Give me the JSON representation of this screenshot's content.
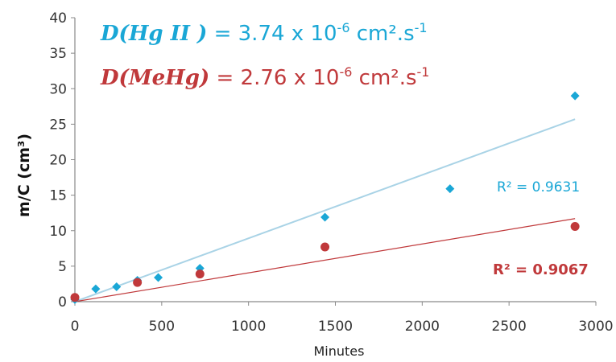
{
  "chart_data": {
    "type": "scatter",
    "xlabel": "Minutes",
    "ylabel": "m/C (cm³)",
    "xlim": [
      0,
      3000
    ],
    "ylim": [
      0,
      40
    ],
    "xticks": [
      "0",
      "500",
      "1000",
      "1500",
      "2000",
      "2500",
      "3000"
    ],
    "yticks": [
      "0",
      "5",
      "10",
      "15",
      "20",
      "25",
      "30",
      "35",
      "40"
    ],
    "grid": false,
    "series": [
      {
        "name": "HgII",
        "color": "#1aa7d6",
        "marker": "diamond",
        "x": [
          0,
          120,
          240,
          360,
          480,
          720,
          1440,
          2160,
          2880
        ],
        "y": [
          0.3,
          1.8,
          2.1,
          3.0,
          3.4,
          4.7,
          11.9,
          15.9,
          29.0
        ],
        "trendline": {
          "x": [
            0,
            2880
          ],
          "y": [
            0,
            25.7
          ],
          "color": "#a9d3e6",
          "r2_label": "R² = 0.9631"
        }
      },
      {
        "name": "MeHg",
        "color": "#c0393b",
        "marker": "circle",
        "x": [
          0,
          360,
          720,
          1440,
          2880
        ],
        "y": [
          0.6,
          2.7,
          3.9,
          7.7,
          10.6
        ],
        "trendline": {
          "x": [
            0,
            2880
          ],
          "y": [
            0,
            11.7
          ],
          "color": "#c0393b",
          "r2_label": "R² = 0.9067"
        }
      }
    ],
    "annotations": [
      {
        "id": "hg",
        "d_symbol": "D",
        "species": "(Hg II )",
        "value_text": " = 3.74 x 10",
        "exponent": "-6",
        "units": " cm².s",
        "units_exp": "-1",
        "color": "#1aa7d6"
      },
      {
        "id": "mehg",
        "d_symbol": "D",
        "species": "(MeHg)",
        "value_text": " = 2.76 x 10",
        "exponent": "-6",
        "units": " cm².s",
        "units_exp": "-1",
        "color": "#c0393b"
      }
    ]
  }
}
